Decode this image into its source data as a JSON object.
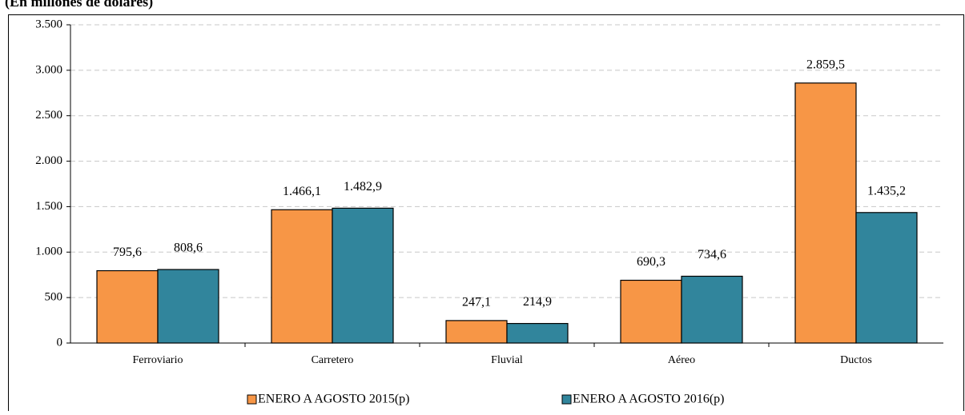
{
  "chart_data": {
    "type": "bar",
    "title": "(En millones de dólares)",
    "categories": [
      "Ferroviario",
      "Carretero",
      "Fluvial",
      "Aéreo",
      "Ductos"
    ],
    "series": [
      {
        "name": "ENERO A AGOSTO 2015(p)",
        "color": "#f79646",
        "values": [
          795.6,
          1466.1,
          247.1,
          690.3,
          2859.5
        ],
        "value_labels": [
          "795,6",
          "1.466,1",
          "247,1",
          "690,3",
          "2.859,5"
        ]
      },
      {
        "name": "ENERO A AGOSTO 2016(p)",
        "color": "#31859c",
        "values": [
          808.6,
          1482.9,
          214.9,
          734.6,
          1435.2
        ],
        "value_labels": [
          "808,6",
          "1.482,9",
          "214,9",
          "734,6",
          "1.435,2"
        ]
      }
    ],
    "ylim": [
      0,
      3500
    ],
    "yticks": [
      0,
      500,
      {
        "value": 1000,
        "label": "1.000"
      },
      {
        "value": 1500,
        "label": "1.500"
      },
      {
        "value": 2000,
        "label": "2.000"
      },
      {
        "value": 2500,
        "label": "2.500"
      },
      {
        "value": 3000,
        "label": "3.000"
      },
      {
        "value": 3500,
        "label": "3.500"
      }
    ],
    "grid": true,
    "legend": "bottom"
  }
}
